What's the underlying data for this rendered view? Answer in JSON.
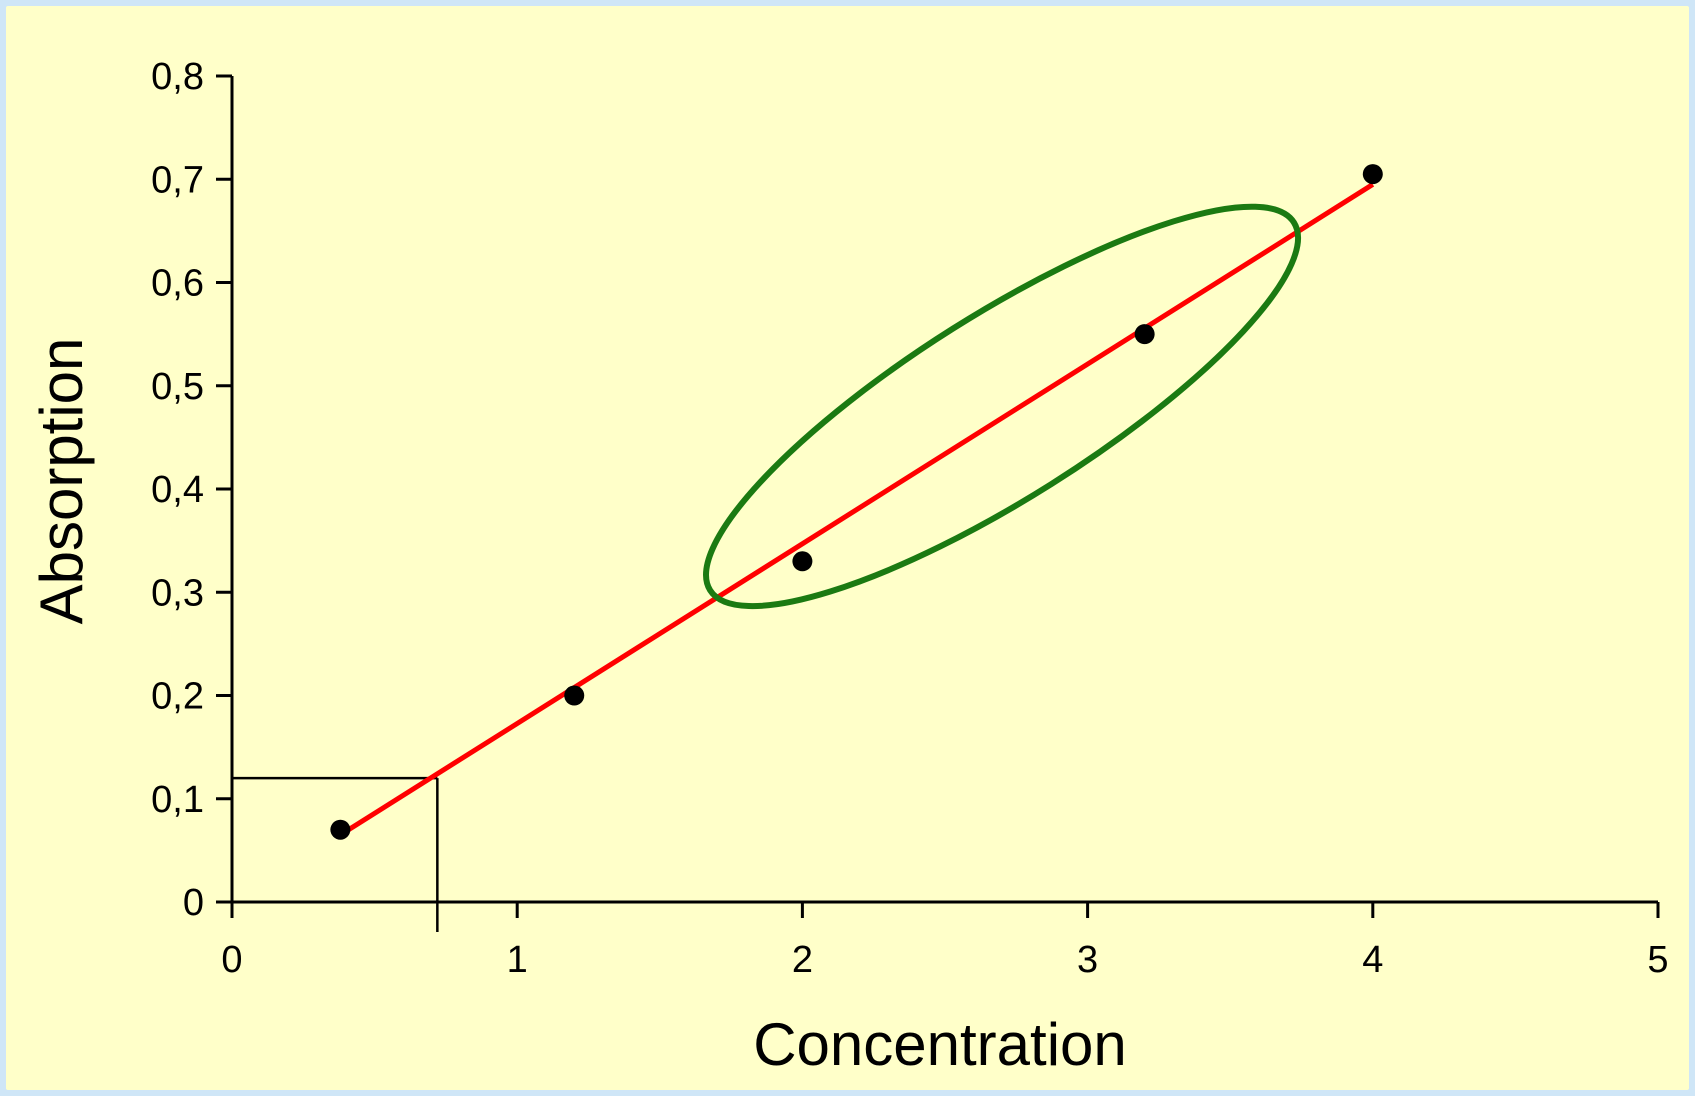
{
  "chart_data": {
    "type": "scatter",
    "xlabel": "Concentration",
    "ylabel": "Absorption",
    "xlim": [
      0,
      5
    ],
    "ylim": [
      0,
      0.8
    ],
    "x_ticks": [
      "0",
      "1",
      "2",
      "3",
      "4",
      "5"
    ],
    "y_ticks": [
      "0",
      "0,1",
      "0,2",
      "0,3",
      "0,4",
      "0,5",
      "0,6",
      "0,7",
      "0,8"
    ],
    "grid": false,
    "series": [
      {
        "points": [
          {
            "x": 0.38,
            "y": 0.07
          },
          {
            "x": 1.2,
            "y": 0.2
          },
          {
            "x": 2.0,
            "y": 0.33
          },
          {
            "x": 3.2,
            "y": 0.55
          },
          {
            "x": 4.0,
            "y": 0.705
          }
        ],
        "marker_color": "#000000"
      }
    ],
    "trendline": {
      "x": [
        0.38,
        4.0
      ],
      "y": [
        0.065,
        0.695
      ],
      "color": "#ff0000"
    },
    "reference_lines": {
      "x": 0.72,
      "y": 0.12,
      "color": "#000000"
    },
    "highlight_ellipse": {
      "center": {
        "x": 2.7,
        "y": 0.48
      },
      "color": "#1b7a12"
    }
  }
}
